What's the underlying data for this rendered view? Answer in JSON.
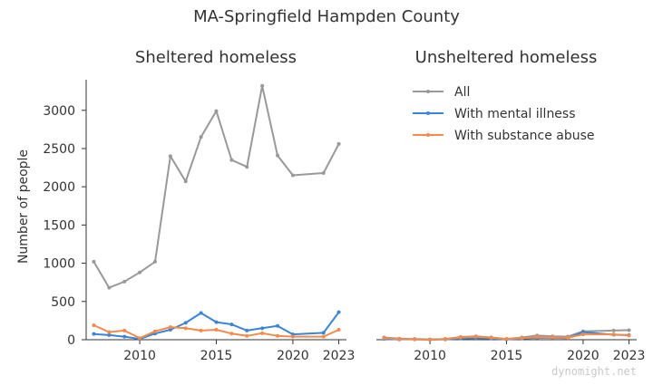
{
  "chart_data": {
    "type": "line",
    "title": "MA-Springfield Hampden County",
    "ylabel": "Number of people",
    "watermark": "dynomight.net",
    "legend_position": "top-right of right panel",
    "legend": [
      {
        "name": "All",
        "color": "#999999"
      },
      {
        "name": "With mental illness",
        "color": "#3a85d6"
      },
      {
        "name": "With substance abuse",
        "color": "#f58a4a"
      }
    ],
    "xlim": [
      2006.5,
      2023.5
    ],
    "ylim": [
      0,
      3400
    ],
    "x_ticks": [
      2010,
      2015,
      2020,
      2023
    ],
    "y_ticks": [
      0,
      500,
      1000,
      1500,
      2000,
      2500,
      3000
    ],
    "panels": [
      {
        "title": "Sheltered homeless",
        "series": [
          {
            "name": "All",
            "color": "#999999",
            "x": [
              2007,
              2008,
              2009,
              2010,
              2011,
              2012,
              2013,
              2014,
              2015,
              2016,
              2017,
              2018,
              2019,
              2020,
              2022,
              2023
            ],
            "y": [
              1020,
              680,
              760,
              880,
              1020,
              2400,
              2070,
              2650,
              2990,
              2350,
              2260,
              3320,
              2410,
              2150,
              2180,
              2560
            ]
          },
          {
            "name": "With mental illness",
            "color": "#3a85d6",
            "x": [
              2007,
              2008,
              2009,
              2010,
              2011,
              2012,
              2013,
              2014,
              2015,
              2016,
              2017,
              2018,
              2019,
              2020,
              2022,
              2023
            ],
            "y": [
              75,
              60,
              40,
              10,
              80,
              130,
              220,
              350,
              230,
              200,
              120,
              150,
              180,
              70,
              90,
              360
            ]
          },
          {
            "name": "With substance abuse",
            "color": "#f58a4a",
            "x": [
              2007,
              2008,
              2009,
              2010,
              2011,
              2012,
              2013,
              2014,
              2015,
              2016,
              2017,
              2018,
              2019,
              2020,
              2022,
              2023
            ],
            "y": [
              190,
              100,
              120,
              20,
              110,
              165,
              150,
              120,
              130,
              80,
              50,
              85,
              50,
              40,
              40,
              130
            ]
          }
        ]
      },
      {
        "title": "Unsheltered homeless",
        "series": [
          {
            "name": "All",
            "color": "#999999",
            "x": [
              2007,
              2008,
              2009,
              2010,
              2011,
              2012,
              2013,
              2014,
              2015,
              2016,
              2017,
              2018,
              2019,
              2020,
              2022,
              2023
            ],
            "y": [
              30,
              15,
              10,
              5,
              10,
              35,
              45,
              30,
              10,
              30,
              55,
              45,
              40,
              110,
              120,
              125
            ]
          },
          {
            "name": "With mental illness",
            "color": "#3a85d6",
            "x": [
              2007,
              2008,
              2009,
              2010,
              2011,
              2012,
              2013,
              2014,
              2015,
              2016,
              2017,
              2018,
              2019,
              2020,
              2022,
              2023
            ],
            "y": [
              10,
              5,
              5,
              0,
              5,
              15,
              20,
              15,
              5,
              15,
              25,
              25,
              20,
              100,
              65,
              60
            ]
          },
          {
            "name": "With substance abuse",
            "color": "#f58a4a",
            "x": [
              2007,
              2008,
              2009,
              2010,
              2011,
              2012,
              2013,
              2014,
              2015,
              2016,
              2017,
              2018,
              2019,
              2020,
              2022,
              2023
            ],
            "y": [
              20,
              10,
              5,
              0,
              10,
              30,
              40,
              25,
              10,
              20,
              35,
              30,
              25,
              70,
              70,
              55
            ]
          }
        ]
      }
    ]
  }
}
